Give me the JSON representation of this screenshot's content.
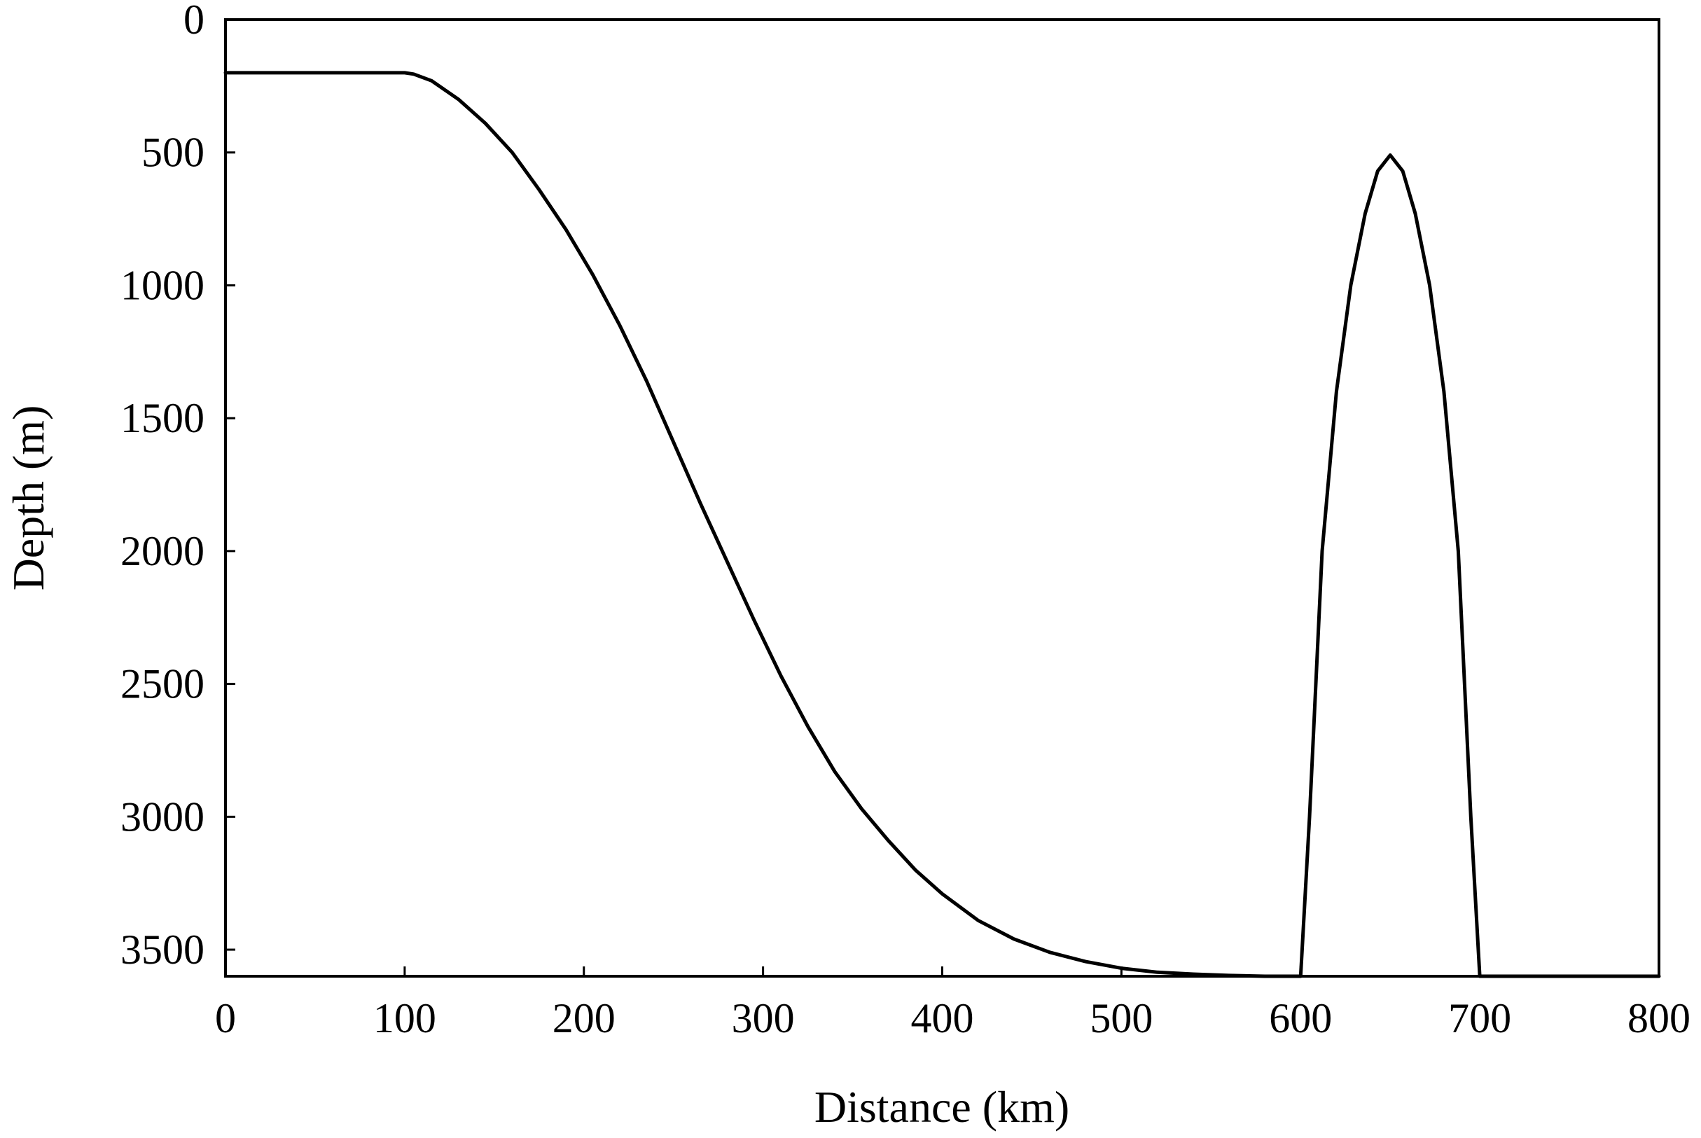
{
  "chart_data": {
    "type": "line",
    "title": "",
    "xlabel": "Distance (km)",
    "ylabel": "Depth (m)",
    "xlim": [
      0,
      800
    ],
    "ylim": [
      0,
      3600
    ],
    "y_inverted": true,
    "grid": false,
    "xticks": [
      0,
      100,
      200,
      300,
      400,
      500,
      600,
      700,
      800
    ],
    "yticks": [
      0,
      500,
      1000,
      1500,
      2000,
      2500,
      3000,
      3500
    ],
    "series": [
      {
        "name": "",
        "color": "#000000",
        "x": [
          0,
          100,
          105,
          115,
          130,
          145,
          160,
          175,
          190,
          205,
          220,
          235,
          250,
          265,
          280,
          295,
          310,
          325,
          340,
          355,
          370,
          385,
          400,
          420,
          440,
          460,
          480,
          500,
          520,
          540,
          560,
          580,
          600,
          605,
          612,
          620,
          628,
          636,
          643,
          650,
          657,
          664,
          672,
          680,
          688,
          695,
          700,
          800
        ],
        "y": [
          200,
          200,
          205,
          230,
          300,
          390,
          500,
          640,
          790,
          960,
          1150,
          1360,
          1590,
          1820,
          2040,
          2260,
          2470,
          2660,
          2830,
          2970,
          3090,
          3200,
          3290,
          3390,
          3460,
          3510,
          3545,
          3570,
          3585,
          3592,
          3597,
          3600,
          3600,
          3000,
          2000,
          1400,
          1000,
          730,
          570,
          510,
          570,
          730,
          1000,
          1400,
          2000,
          3000,
          3600,
          3600
        ]
      }
    ]
  }
}
